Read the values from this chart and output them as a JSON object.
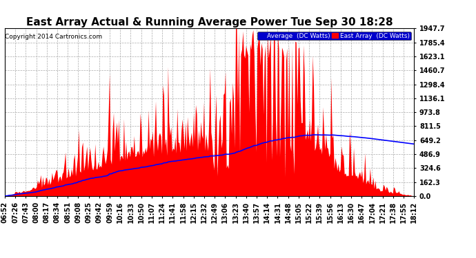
{
  "title": "East Array Actual & Running Average Power Tue Sep 30 18:28",
  "copyright": "Copyright 2014 Cartronics.com",
  "legend_avg": "Average  (DC Watts)",
  "legend_east": "East Array  (DC Watts)",
  "yticks": [
    0.0,
    162.3,
    324.6,
    486.9,
    649.2,
    811.5,
    973.8,
    1136.1,
    1298.4,
    1460.7,
    1623.1,
    1785.4,
    1947.7
  ],
  "ymax": 1947.7,
  "ymin": 0.0,
  "background_color": "#ffffff",
  "plot_bg_color": "#ffffff",
  "grid_color": "#aaaaaa",
  "bar_color": "#ff0000",
  "avg_line_color": "#0000ff",
  "title_fontsize": 11,
  "tick_fontsize": 7,
  "num_points": 400
}
